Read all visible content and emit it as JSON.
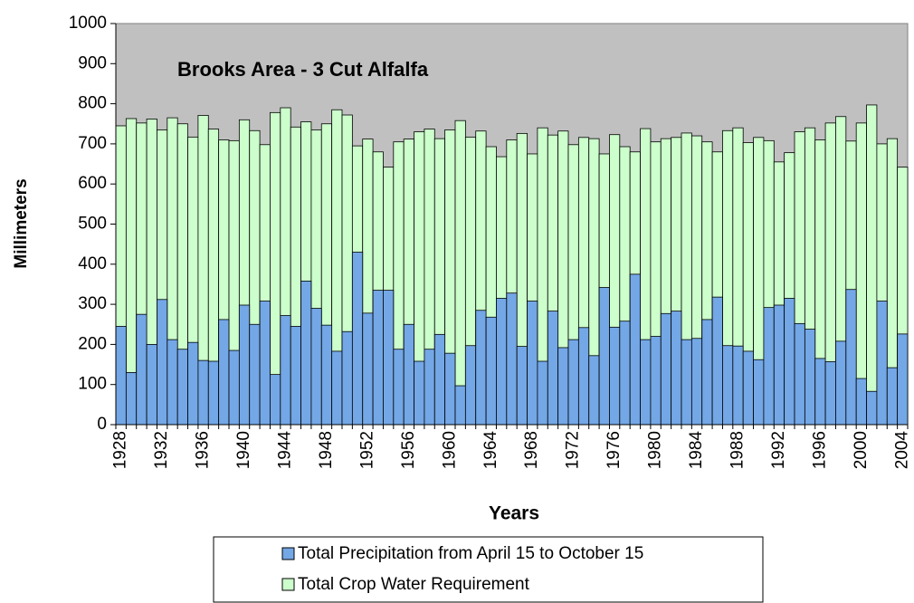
{
  "chart_data": {
    "type": "bar",
    "title": "Brooks Area - 3 Cut Alfalfa",
    "x_label": "Years",
    "y_label": "Millimeters",
    "categories": [
      "1928",
      null,
      null,
      null,
      "1932",
      null,
      null,
      null,
      "1936",
      null,
      null,
      null,
      "1940",
      null,
      null,
      null,
      "1944",
      null,
      null,
      null,
      "1948",
      null,
      null,
      null,
      "1952",
      null,
      null,
      null,
      "1956",
      null,
      null,
      null,
      "1960",
      null,
      null,
      null,
      "1964",
      null,
      null,
      null,
      "1968",
      null,
      null,
      null,
      "1972",
      null,
      null,
      null,
      "1976",
      null,
      null,
      null,
      "1980",
      null,
      null,
      null,
      "1984",
      null,
      null,
      null,
      "1988",
      null,
      null,
      null,
      "1992",
      null,
      null,
      null,
      "1996",
      null,
      null,
      null,
      "2000",
      null,
      null,
      null,
      "2004"
    ],
    "series": [
      {
        "name": "Total Precipitation from April 15 to October 15",
        "color": "#73a7e6",
        "values": [
          245,
          130,
          275,
          200,
          312,
          212,
          188,
          205,
          160,
          158,
          262,
          185,
          298,
          250,
          308,
          125,
          272,
          245,
          358,
          290,
          248,
          183,
          232,
          430,
          278,
          335,
          335,
          188,
          250,
          158,
          188,
          225,
          178,
          97,
          197,
          285,
          268,
          315,
          328,
          195,
          308,
          158,
          283,
          192,
          212,
          242,
          172,
          342,
          243,
          258,
          375,
          212,
          220,
          277,
          283,
          212,
          215,
          262,
          318,
          197,
          196,
          183,
          162,
          292,
          298,
          315,
          252,
          238,
          165,
          157,
          208,
          337,
          115,
          83,
          308,
          142,
          226
        ]
      },
      {
        "name": "Total Crop Water Requirement",
        "color": "#ccffcc",
        "values": [
          745,
          763,
          752,
          762,
          735,
          765,
          750,
          717,
          771,
          737,
          710,
          708,
          760,
          733,
          698,
          778,
          790,
          742,
          755,
          735,
          750,
          785,
          772,
          695,
          712,
          680,
          642,
          705,
          712,
          730,
          737,
          713,
          735,
          758,
          717,
          732,
          693,
          668,
          710,
          726,
          675,
          740,
          722,
          732,
          698,
          716,
          713,
          675,
          723,
          693,
          680,
          738,
          705,
          713,
          716,
          727,
          720,
          705,
          680,
          733,
          740,
          703,
          716,
          708,
          655,
          678,
          730,
          740,
          710,
          752,
          768,
          707,
          752,
          797,
          700,
          713,
          642
        ]
      }
    ],
    "ylim": [
      0,
      1000
    ],
    "yticks": [
      0,
      100,
      200,
      300,
      400,
      500,
      600,
      700,
      800,
      900,
      1000
    ],
    "plot_background": "#c0c0c0",
    "legend": "bottom"
  }
}
